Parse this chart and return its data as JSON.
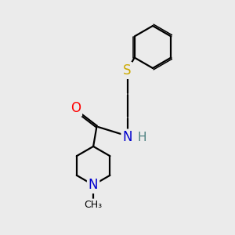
{
  "background_color": "#ebebeb",
  "atom_colors": {
    "O": "#ff0000",
    "N": "#0000cd",
    "S": "#ccaa00",
    "C": "#000000",
    "H": "#4a7f7f"
  },
  "bond_color": "#000000",
  "bond_width": 1.6,
  "figsize": [
    3.0,
    3.0
  ],
  "dpi": 100,
  "xlim": [
    0,
    10
  ],
  "ylim": [
    0,
    10
  ]
}
